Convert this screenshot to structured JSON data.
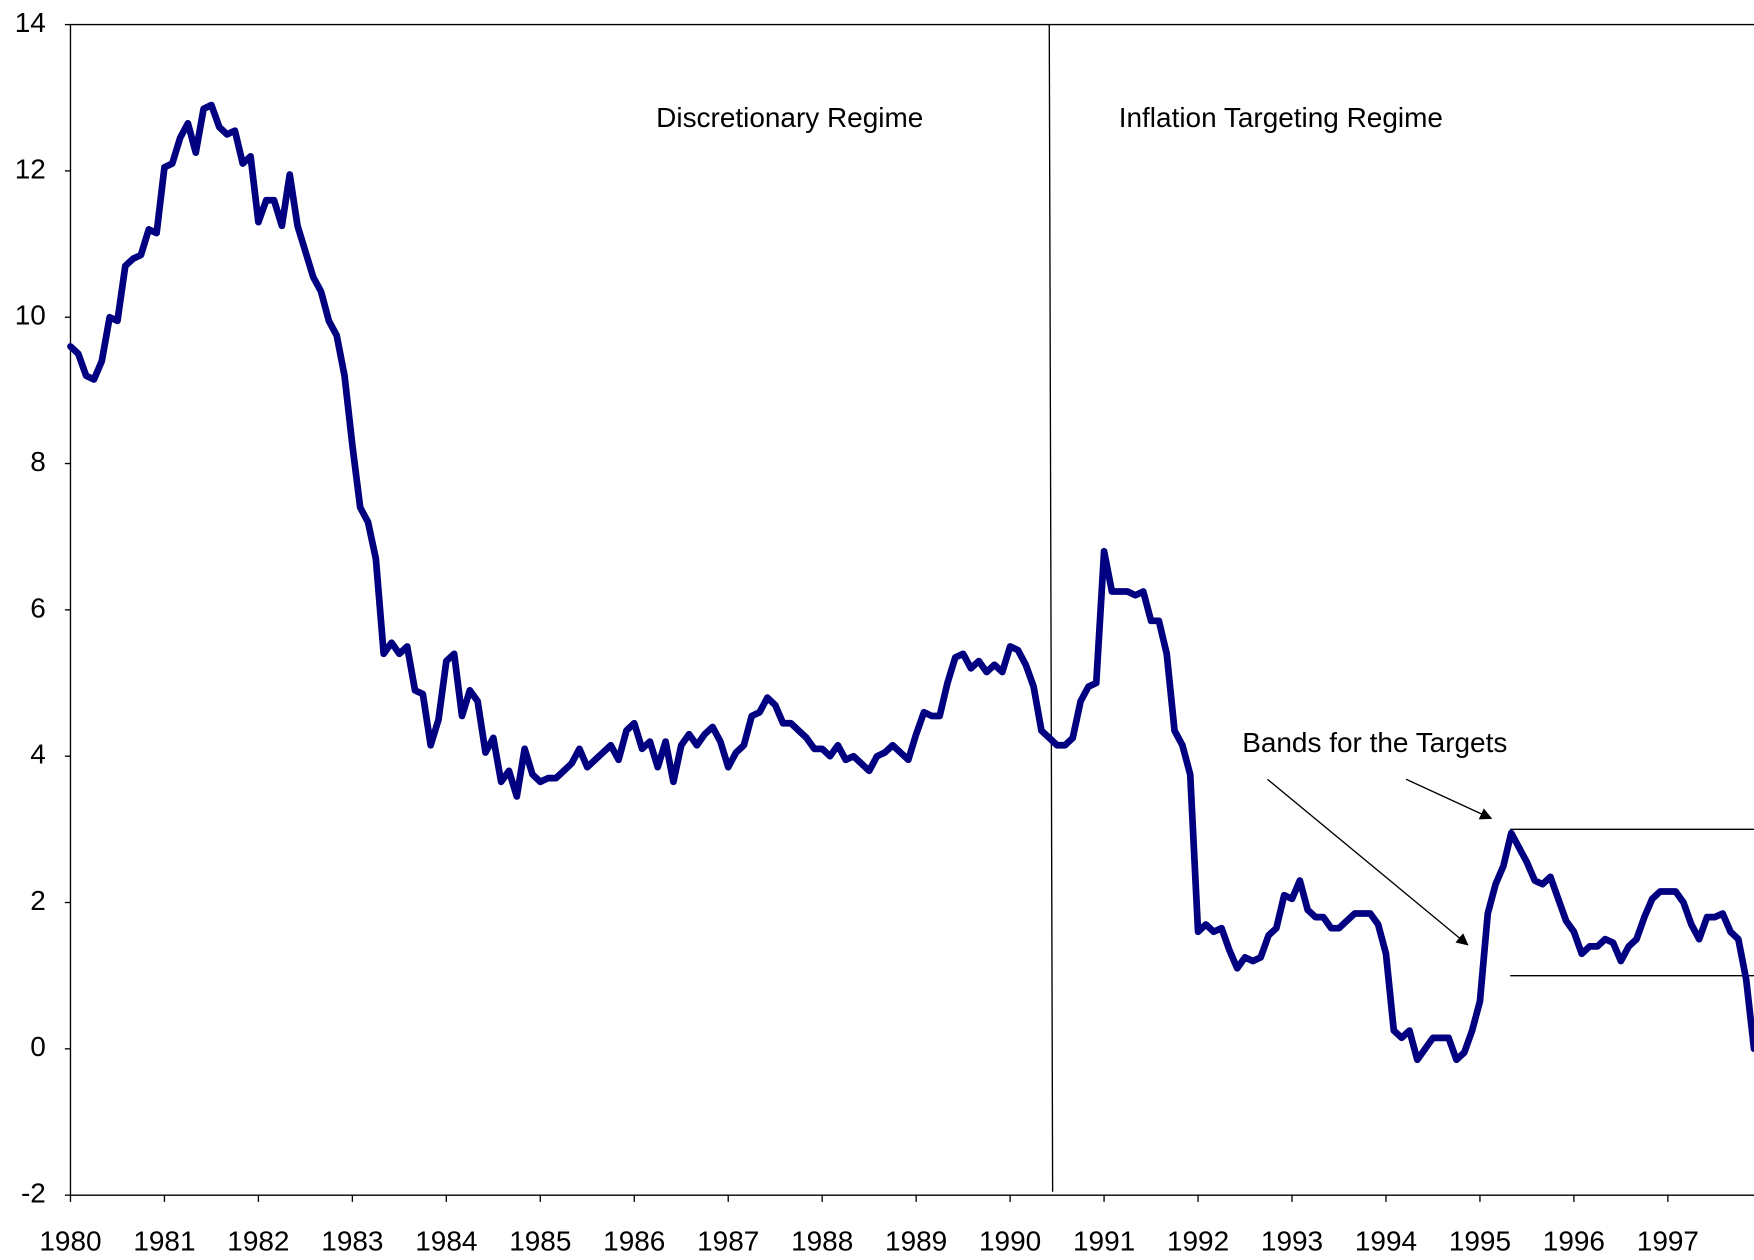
{
  "chart_data": {
    "type": "line",
    "annotations": [
      "Discretionary Regime",
      "Inflation Targeting Regime",
      "Bands for the Targets"
    ],
    "target_band": [
      1,
      3
    ],
    "color": "#000080",
    "ylim": [
      -2,
      14
    ],
    "yticks": [
      -2,
      0,
      2,
      4,
      6,
      8,
      10,
      12,
      14
    ],
    "categories": [
      "1980",
      null,
      null,
      null,
      null,
      null,
      null,
      null,
      null,
      null,
      null,
      null,
      "1981",
      null,
      null,
      null,
      null,
      null,
      null,
      null,
      null,
      null,
      null,
      null,
      "1982",
      null,
      null,
      null,
      null,
      null,
      null,
      null,
      null,
      null,
      null,
      null,
      "1983",
      null,
      null,
      null,
      null,
      null,
      null,
      null,
      null,
      null,
      null,
      null,
      "1984",
      null,
      null,
      null,
      null,
      null,
      null,
      null,
      null,
      null,
      null,
      null,
      "1985",
      null,
      null,
      null,
      null,
      null,
      null,
      null,
      null,
      null,
      null,
      null,
      "1986",
      null,
      null,
      null,
      null,
      null,
      null,
      null,
      null,
      null,
      null,
      null,
      "1987",
      null,
      null,
      null,
      null,
      null,
      null,
      null,
      null,
      null,
      null,
      null,
      "1988",
      null,
      null,
      null,
      null,
      null,
      null,
      null,
      null,
      null,
      null,
      null,
      "1989",
      null,
      null,
      null,
      null,
      null,
      null,
      null,
      null,
      null,
      null,
      null,
      "1990",
      null,
      null,
      null,
      null,
      null,
      null,
      null,
      null,
      null,
      null,
      null,
      "1991",
      null,
      null,
      null,
      null,
      null,
      null,
      null,
      null,
      null,
      null,
      null,
      "1992",
      null,
      null,
      null,
      null,
      null,
      null,
      null,
      null,
      null,
      null,
      null,
      "1993",
      null,
      null,
      null,
      null,
      null,
      null,
      null,
      null,
      null,
      null,
      null,
      "1994",
      null,
      null,
      null,
      null,
      null,
      null,
      null,
      null,
      null,
      null,
      null,
      "1995",
      null,
      null,
      null,
      null,
      null,
      null,
      null,
      null,
      null,
      null,
      null,
      "1996",
      null,
      null,
      null,
      null,
      null,
      null,
      null,
      null,
      null,
      null,
      null,
      "1997",
      null,
      null,
      null,
      null,
      null,
      null,
      null,
      null,
      null,
      null,
      null
    ],
    "values": [
      9.6,
      9.5,
      9.2,
      9.15,
      9.4,
      10.0,
      9.95,
      10.7,
      10.8,
      10.85,
      11.2,
      11.15,
      12.05,
      12.1,
      12.45,
      12.65,
      12.25,
      12.85,
      12.9,
      12.6,
      12.5,
      12.55,
      12.1,
      12.2,
      11.3,
      11.6,
      11.6,
      11.25,
      11.95,
      11.25,
      10.9,
      10.55,
      10.35,
      9.95,
      9.75,
      9.2,
      8.25,
      7.4,
      7.2,
      6.7,
      5.4,
      5.55,
      5.4,
      5.5,
      4.9,
      4.85,
      4.15,
      4.5,
      5.3,
      5.4,
      4.55,
      4.9,
      4.75,
      4.05,
      4.25,
      3.65,
      3.8,
      3.45,
      4.1,
      3.75,
      3.65,
      3.7,
      3.7,
      3.8,
      3.9,
      4.1,
      3.85,
      3.95,
      4.05,
      4.15,
      3.95,
      4.35,
      4.45,
      4.1,
      4.2,
      3.85,
      4.2,
      3.65,
      4.15,
      4.3,
      4.15,
      4.3,
      4.4,
      4.2,
      3.85,
      4.05,
      4.15,
      4.55,
      4.6,
      4.8,
      4.7,
      4.45,
      4.45,
      4.35,
      4.25,
      4.1,
      4.1,
      4.0,
      4.15,
      3.95,
      4.0,
      3.9,
      3.8,
      4.0,
      4.05,
      4.15,
      4.05,
      3.95,
      4.3,
      4.6,
      4.55,
      4.55,
      5.0,
      5.35,
      5.4,
      5.2,
      5.3,
      5.15,
      5.25,
      5.15,
      5.5,
      5.45,
      5.25,
      4.95,
      4.35,
      4.25,
      4.15,
      4.15,
      4.25,
      4.75,
      4.95,
      5.0,
      6.8,
      6.25,
      6.25,
      6.25,
      6.2,
      6.25,
      5.85,
      5.85,
      5.4,
      4.35,
      4.15,
      3.75,
      1.6,
      1.7,
      1.6,
      1.65,
      1.35,
      1.1,
      1.25,
      1.2,
      1.25,
      1.55,
      1.65,
      2.1,
      2.05,
      2.3,
      1.9,
      1.8,
      1.8,
      1.65,
      1.65,
      1.75,
      1.85,
      1.85,
      1.85,
      1.7,
      1.3,
      0.25,
      0.15,
      0.25,
      -0.15,
      0.0,
      0.15,
      0.15,
      0.15,
      -0.15,
      -0.05,
      0.25,
      0.65,
      1.85,
      2.25,
      2.5,
      2.95,
      2.75,
      2.55,
      2.3,
      2.25,
      2.35,
      2.05,
      1.75,
      1.6,
      1.3,
      1.4,
      1.4,
      1.5,
      1.45,
      1.2,
      1.4,
      1.5,
      1.8,
      2.05,
      2.15,
      2.15,
      2.15,
      2.0,
      1.7,
      1.5,
      1.8,
      1.8,
      1.85,
      1.6,
      1.5,
      0.95,
      0.0
    ]
  }
}
